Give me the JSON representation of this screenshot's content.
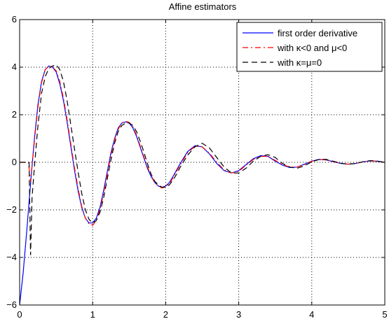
{
  "chart_data": {
    "type": "line",
    "title": "Affine estimators",
    "xlabel": "",
    "ylabel": "",
    "xlim": [
      0,
      5
    ],
    "ylim": [
      -6,
      6
    ],
    "x_ticks": [
      0,
      1,
      2,
      3,
      4,
      5
    ],
    "y_ticks": [
      -6,
      -4,
      -2,
      0,
      2,
      4,
      6
    ],
    "grid": true,
    "legend_position": "top-right",
    "series": [
      {
        "name": "first order derivative",
        "color": "#0000ff",
        "style": "solid",
        "x": [
          0,
          0.05,
          0.1,
          0.15,
          0.2,
          0.25,
          0.3,
          0.35,
          0.4,
          0.45,
          0.5,
          0.55,
          0.6,
          0.65,
          0.7,
          0.75,
          0.8,
          0.85,
          0.9,
          0.95,
          1.0,
          1.05,
          1.1,
          1.15,
          1.2,
          1.25,
          1.3,
          1.35,
          1.4,
          1.45,
          1.5,
          1.55,
          1.6,
          1.65,
          1.7,
          1.75,
          1.8,
          1.85,
          1.9,
          1.95,
          2.0,
          2.05,
          2.1,
          2.2,
          2.3,
          2.4,
          2.5,
          2.6,
          2.7,
          2.8,
          2.9,
          3.0,
          3.1,
          3.2,
          3.3,
          3.4,
          3.5,
          3.6,
          3.7,
          3.8,
          3.9,
          4.0,
          4.1,
          4.2,
          4.3,
          4.4,
          4.5,
          4.6,
          4.7,
          4.8,
          4.9,
          5.0
        ],
        "values": [
          -6.0,
          -4.6,
          -2.8,
          -0.9,
          0.9,
          2.4,
          3.4,
          3.9,
          4.05,
          4.0,
          3.8,
          3.3,
          2.6,
          1.7,
          0.7,
          -0.3,
          -1.2,
          -1.9,
          -2.35,
          -2.55,
          -2.55,
          -2.35,
          -1.9,
          -1.2,
          -0.4,
          0.4,
          1.0,
          1.45,
          1.65,
          1.7,
          1.65,
          1.45,
          1.1,
          0.65,
          0.2,
          -0.25,
          -0.6,
          -0.85,
          -1.0,
          -1.05,
          -1.0,
          -0.85,
          -0.6,
          -0.05,
          0.45,
          0.7,
          0.65,
          0.35,
          -0.05,
          -0.35,
          -0.45,
          -0.35,
          -0.1,
          0.15,
          0.28,
          0.25,
          0.05,
          -0.12,
          -0.22,
          -0.2,
          -0.08,
          0.05,
          0.12,
          0.1,
          0.02,
          -0.05,
          -0.08,
          -0.05,
          0.02,
          0.06,
          0.04,
          0.0
        ]
      },
      {
        "name": "with κ<0 and μ<0",
        "color": "#ff0000",
        "style": "dashdot",
        "x": [
          0,
          0.12,
          0.15,
          0.2,
          0.25,
          0.3,
          0.35,
          0.4,
          0.45,
          0.5,
          0.55,
          0.6,
          0.65,
          0.7,
          0.75,
          0.8,
          0.85,
          0.9,
          0.95,
          1.0,
          1.05,
          1.1,
          1.15,
          1.2,
          1.25,
          1.3,
          1.35,
          1.4,
          1.45,
          1.5,
          1.55,
          1.6,
          1.65,
          1.7,
          1.75,
          1.8,
          1.85,
          1.9,
          1.95,
          2.0,
          2.05,
          2.1,
          2.2,
          2.3,
          2.4,
          2.5,
          2.6,
          2.7,
          2.8,
          2.9,
          3.0,
          3.1,
          3.2,
          3.3,
          3.4,
          3.5,
          3.6,
          3.7,
          3.8,
          3.9,
          4.0,
          4.1,
          4.2,
          4.3,
          4.4,
          4.5,
          4.6,
          4.7,
          4.8,
          4.9,
          5.0
        ],
        "values": [
          0.0,
          0.0,
          -0.8,
          0.8,
          2.3,
          3.35,
          3.9,
          4.05,
          4.0,
          3.85,
          3.4,
          2.7,
          1.8,
          0.8,
          -0.2,
          -1.1,
          -1.85,
          -2.35,
          -2.6,
          -2.65,
          -2.45,
          -2.0,
          -1.3,
          -0.5,
          0.3,
          0.95,
          1.4,
          1.65,
          1.72,
          1.68,
          1.5,
          1.15,
          0.7,
          0.25,
          -0.2,
          -0.55,
          -0.85,
          -1.0,
          -1.08,
          -1.02,
          -0.9,
          -0.65,
          -0.1,
          0.4,
          0.68,
          0.65,
          0.38,
          0.0,
          -0.32,
          -0.45,
          -0.38,
          -0.12,
          0.12,
          0.25,
          0.25,
          0.08,
          -0.1,
          -0.2,
          -0.2,
          -0.1,
          0.04,
          0.12,
          0.1,
          0.03,
          -0.04,
          -0.08,
          -0.05,
          0.02,
          0.06,
          0.05,
          0.0
        ]
      },
      {
        "name": "with κ=μ=0",
        "color": "#000000",
        "style": "dashed",
        "x": [
          0,
          0.13,
          0.15,
          0.17,
          0.2,
          0.25,
          0.3,
          0.35,
          0.4,
          0.45,
          0.5,
          0.55,
          0.6,
          0.65,
          0.7,
          0.75,
          0.8,
          0.85,
          0.9,
          0.95,
          1.0,
          1.05,
          1.1,
          1.15,
          1.2,
          1.25,
          1.3,
          1.35,
          1.4,
          1.45,
          1.5,
          1.55,
          1.6,
          1.65,
          1.7,
          1.75,
          1.8,
          1.85,
          1.9,
          1.95,
          2.0,
          2.05,
          2.1,
          2.15,
          2.2,
          2.3,
          2.4,
          2.5,
          2.6,
          2.7,
          2.8,
          2.9,
          3.0,
          3.1,
          3.2,
          3.3,
          3.4,
          3.5,
          3.6,
          3.7,
          3.8,
          3.9,
          4.0,
          4.1,
          4.2,
          4.3,
          4.4,
          4.5,
          4.6,
          4.7,
          4.8,
          4.9,
          5.0
        ],
        "values": [
          0.0,
          0.0,
          -3.9,
          -1.5,
          -0.3,
          1.5,
          2.9,
          3.6,
          3.95,
          4.05,
          4.1,
          3.9,
          3.4,
          2.6,
          1.6,
          0.6,
          -0.4,
          -1.3,
          -2.0,
          -2.4,
          -2.55,
          -2.45,
          -2.1,
          -1.5,
          -0.7,
          0.1,
          0.8,
          1.3,
          1.55,
          1.65,
          1.65,
          1.55,
          1.3,
          0.9,
          0.45,
          -0.05,
          -0.5,
          -0.8,
          -0.95,
          -1.05,
          -1.05,
          -0.95,
          -0.75,
          -0.5,
          -0.2,
          0.3,
          0.65,
          0.8,
          0.6,
          0.2,
          -0.2,
          -0.45,
          -0.45,
          -0.25,
          0.05,
          0.25,
          0.32,
          0.2,
          -0.05,
          -0.2,
          -0.25,
          -0.15,
          0.02,
          0.12,
          0.12,
          0.04,
          -0.04,
          -0.08,
          -0.05,
          0.02,
          0.07,
          0.05,
          0.0
        ]
      }
    ]
  }
}
